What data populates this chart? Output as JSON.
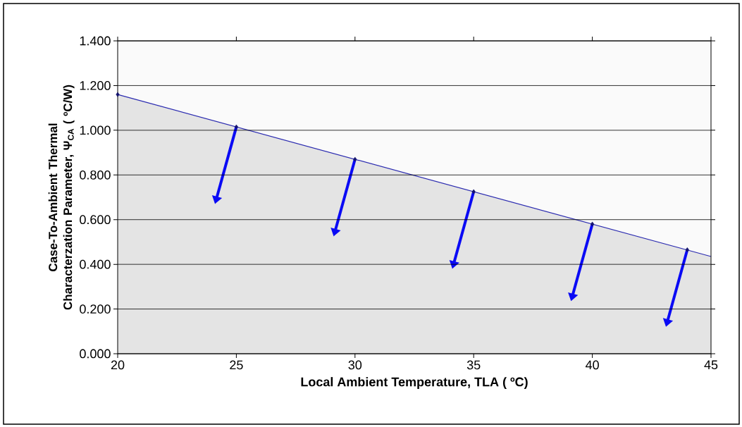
{
  "chart_data": {
    "type": "area",
    "xlabel": "Local Ambient Temperature, TLA ( ºC)",
    "ylabel": "Case-To-Ambient Thermal Characterzation Parameter,  Ψ$_{CA}$ ( ºC/W)",
    "xlim": [
      20,
      45
    ],
    "xticks": [
      20,
      25,
      30,
      35,
      40,
      45
    ],
    "ylim": [
      0,
      1.4
    ],
    "yticks": [
      {
        "value": 0,
        "label": "0.000"
      },
      {
        "value": 0.2,
        "label": "0.200"
      },
      {
        "value": 0.4,
        "label": "0.400"
      },
      {
        "value": 0.6,
        "label": "0.600"
      },
      {
        "value": 0.8,
        "label": "0.800"
      },
      {
        "value": 1.0,
        "label": "1.000"
      },
      {
        "value": 1.2,
        "label": "1.200"
      },
      {
        "value": 1.4,
        "label": "1.400"
      }
    ],
    "grid": "y",
    "series": [
      {
        "color": "#2b2bb0",
        "marker": "none",
        "x": [
          20,
          45
        ],
        "values": [
          1.16,
          0.435
        ]
      },
      {
        "type": "scatter",
        "color": "#14146e",
        "marker": "diamond",
        "x": [
          20,
          25,
          30,
          35,
          40,
          44
        ],
        "values": [
          1.16,
          1.015,
          0.87,
          0.725,
          0.58,
          0.465
        ]
      }
    ]
  }
}
